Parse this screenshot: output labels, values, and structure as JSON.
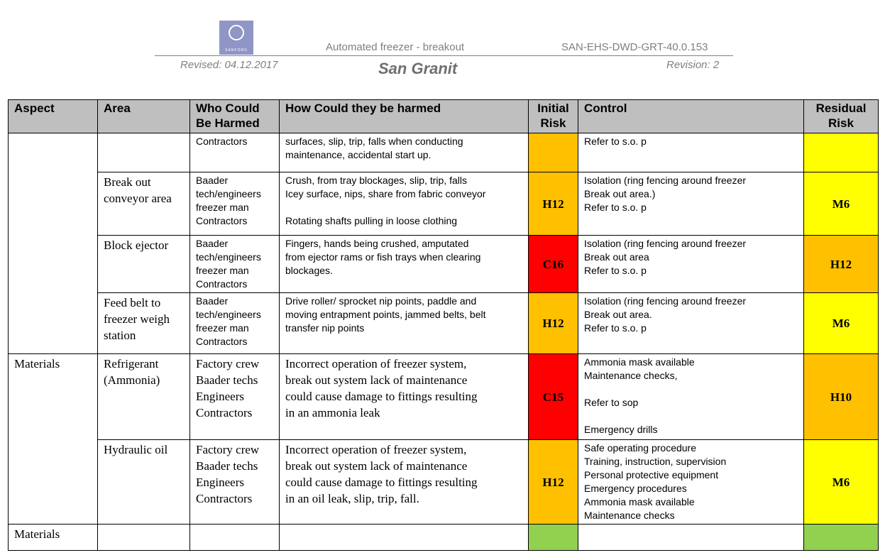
{
  "header": {
    "logo_text": "SANFORD",
    "doc_title": "Automated freezer - breakout",
    "doc_code": "SAN-EHS-DWD-GRT-40.0.153",
    "revised": "Revised: 04.12.2017",
    "site": "San Granit",
    "revision": "Revision: 2"
  },
  "colors": {
    "orange": "#FFC000",
    "yellow": "#FFFF00",
    "red": "#FF0000",
    "green": "#92D050",
    "header_gray": "#BFBFBF"
  },
  "columns": [
    "Aspect",
    "Area",
    "Who Could\nBe Harmed",
    "How Could they be harmed",
    "Initial\nRisk",
    "Control",
    "Residual\nRisk"
  ],
  "rows": [
    {
      "area": "",
      "who": "Contractors",
      "how": "surfaces, slip, trip, falls when conducting\nmaintenance, accidental start up.",
      "initial": "",
      "initial_color": "#FFC000",
      "control": "Refer to s.o. p",
      "residual": "",
      "residual_color": "#FFFF00"
    },
    {
      "area": "Break out\nconveyor area",
      "who": "Baader\ntech/engineers\nfreezer man\nContractors",
      "how": "Crush, from tray blockages, slip, trip, falls\nIcey surface, nips, share from fabric conveyor\n\nRotating shafts pulling in loose clothing",
      "initial": "H12",
      "initial_color": "#FFC000",
      "control": "Isolation (ring fencing around freezer\nBreak out area.)\nRefer to s.o. p",
      "residual": "M6",
      "residual_color": "#FFFF00"
    },
    {
      "area": "Block ejector",
      "who": "Baader\ntech/engineers\nfreezer man\nContractors",
      "how": "Fingers, hands being crushed, amputated\nfrom ejector rams or fish trays when clearing\nblockages.",
      "initial": "C16",
      "initial_color": "#FF0000",
      "control": "Isolation (ring fencing around freezer\nBreak out area\nRefer to s.o. p",
      "residual": "H12",
      "residual_color": "#FFC000"
    },
    {
      "area": "Feed belt to\nfreezer weigh\nstation",
      "who": "Baader\ntech/engineers\nfreezer man\nContractors",
      "how": "Drive roller/ sprocket nip points, paddle and\nmoving entrapment points, jammed belts, belt\ntransfer nip points",
      "initial": "H12",
      "initial_color": "#FFC000",
      "control": "Isolation (ring fencing around freezer\nBreak out area.\nRefer to s.o. p",
      "residual": "M6",
      "residual_color": "#FFFF00"
    },
    {
      "aspect": "Materials",
      "area": "Refrigerant\n(Ammonia)",
      "who": "Factory crew\nBaader techs\nEngineers\nContractors",
      "how": "Incorrect operation of freezer system,\nbreak out system lack of maintenance\ncould cause damage to fittings resulting\nin an ammonia leak",
      "initial": "C15",
      "initial_color": "#FF0000",
      "control": "Ammonia mask available\nMaintenance checks,\n\nRefer to sop\n\nEmergency drills",
      "residual": "H10",
      "residual_color": "#FFC000"
    },
    {
      "area": "Hydraulic oil",
      "who": "Factory crew\nBaader techs\nEngineers\nContractors",
      "how": "Incorrect operation of freezer system,\nbreak out system lack of maintenance\ncould cause damage to fittings resulting\nin an oil leak, slip, trip, fall.",
      "initial": "H12",
      "initial_color": "#FFC000",
      "control": "Safe operating procedure\nTraining, instruction, supervision\nPersonal protective equipment\nEmergency procedures\nAmmonia mask available\nMaintenance checks",
      "residual": "M6",
      "residual_color": "#FFFF00"
    },
    {
      "aspect": "Materials",
      "area": "",
      "who": "",
      "how": "",
      "initial": "",
      "initial_color": "#92D050",
      "control": "",
      "residual": "",
      "residual_color": "#92D050"
    }
  ]
}
